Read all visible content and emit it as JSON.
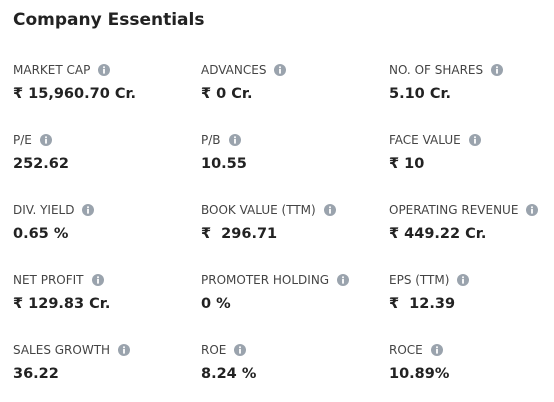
{
  "title": "Company Essentials",
  "items": [
    {
      "label": "MARKET CAP",
      "value": "₹ 15,960.70 Cr."
    },
    {
      "label": "ADVANCES",
      "value": "₹ 0 Cr."
    },
    {
      "label": "NO. OF SHARES",
      "value": "5.10 Cr."
    },
    {
      "label": "P/E",
      "value": "252.62"
    },
    {
      "label": "P/B",
      "value": "10.55"
    },
    {
      "label": "FACE VALUE",
      "value": "₹ 10"
    },
    {
      "label": "DIV. YIELD",
      "value": "0.65 %"
    },
    {
      "label": "BOOK VALUE (TTM)",
      "value": "₹  296.71"
    },
    {
      "label": "OPERATING REVENUE",
      "value": "₹ 449.22 Cr."
    },
    {
      "label": "NET PROFIT",
      "value": "₹ 129.83 Cr."
    },
    {
      "label": "PROMOTER HOLDING",
      "value": "0 %"
    },
    {
      "label": "EPS (TTM)",
      "value": "₹  12.39"
    },
    {
      "label": "SALES GROWTH",
      "value": "36.22"
    },
    {
      "label": "ROE",
      "value": "8.24 %"
    },
    {
      "label": "ROCE",
      "value": "10.89%"
    }
  ]
}
